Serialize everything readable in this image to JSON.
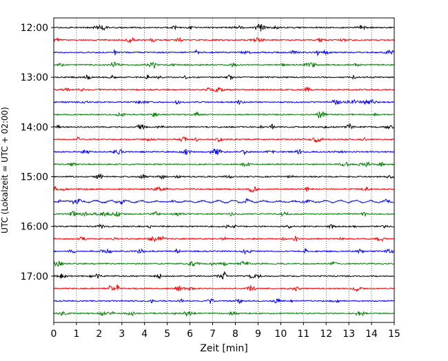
{
  "chart_data": {
    "type": "line",
    "title": "",
    "xlabel": "Zeit  [min]",
    "ylabel": "UTC (Lokalzeit = UTC + 02:00)",
    "xlim": [
      0,
      15
    ],
    "x_ticks": [
      "0",
      "1",
      "2",
      "3",
      "4",
      "5",
      "6",
      "7",
      "8",
      "9",
      "10",
      "11",
      "12",
      "13",
      "14",
      "15"
    ],
    "y_ticks": [
      "12:00",
      "13:00",
      "14:00",
      "15:00",
      "16:00",
      "17:00"
    ],
    "grid": "vertical dotted lines at each minute",
    "row_interval_minutes": 15,
    "row_start_times": [
      "12:00",
      "12:15",
      "12:30",
      "12:45",
      "13:00",
      "13:15",
      "13:30",
      "13:45",
      "14:00",
      "14:15",
      "14:30",
      "14:45",
      "15:00",
      "15:15",
      "15:30",
      "15:45",
      "16:00",
      "16:15",
      "16:30",
      "16:45",
      "17:00",
      "17:15",
      "17:30",
      "17:45"
    ],
    "trace_colors": [
      "#000000",
      "#ff0000",
      "#0000ff",
      "#008000"
    ],
    "trace_kind": "seismogram (helicorder), one 15-minute trace per row, colour cycling black/red/blue/green"
  }
}
